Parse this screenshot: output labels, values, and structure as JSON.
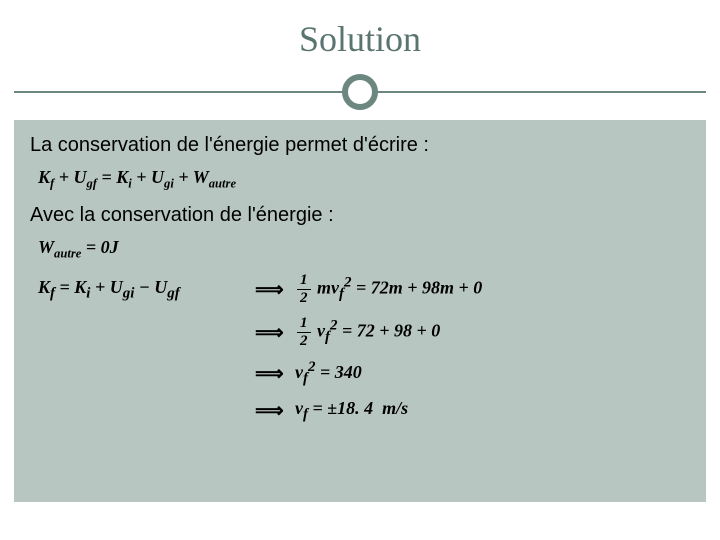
{
  "title": "Solution",
  "line1": "La conservation de l'énergie permet d'écrire :",
  "eq1_html": "K<sub>f</sub> + U<sub>gf</sub> = K<sub>i</sub> + U<sub>gi</sub> + W<sub>autre</sub>",
  "line2": "Avec la conservation de l'énergie :",
  "eq2_html": "W<sub>autre</sub> = 0J",
  "d1_lhs_html": "K<sub>f</sub> = K<sub>i</sub> + U<sub>gi</sub> − U<sub>gf</sub>",
  "d1_rhs_html": "<span class=\"frac\"><span class=\"num\">1</span><span class=\"den\">2</span></span> mv<sub>f</sub><sup>2</sup> = 72m + 98m + 0",
  "d2_rhs_html": "<span class=\"frac\"><span class=\"num\">1</span><span class=\"den\">2</span></span> v<sub>f</sub><sup>2</sup> = 72 + 98 + 0",
  "d3_rhs_html": "v<sub>f</sub><sup>2</sup> = 340",
  "d4_rhs_html": "v<sub>f</sub> = ±18. 4&nbsp; m/s",
  "implies": "⟹",
  "colors": {
    "title_color": "#5a756f",
    "divider_color": "#6b8780",
    "content_bg": "#b8c6c2",
    "text_color": "#000000"
  }
}
